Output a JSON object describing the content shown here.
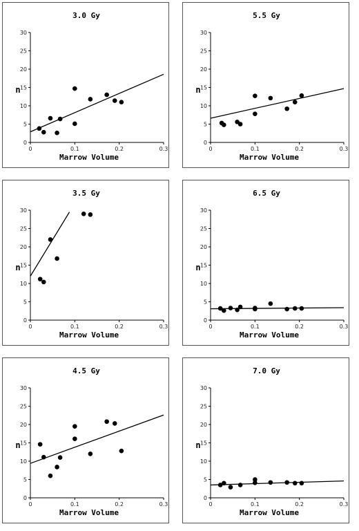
{
  "chart_data": [
    {
      "type": "scatter",
      "title": "3.0 Gy",
      "xlabel": "Marrow Volume",
      "ylabel": "n",
      "xlim": [
        0,
        0.3
      ],
      "ylim": [
        0,
        30
      ],
      "xticks": [
        "0",
        "0.1",
        "0.2",
        "0.3"
      ],
      "yticks": [
        "0",
        "5",
        "10",
        "15",
        "20",
        "25",
        "30"
      ],
      "points": [
        {
          "x": 0.02,
          "y": 3.8
        },
        {
          "x": 0.03,
          "y": 2.8
        },
        {
          "x": 0.045,
          "y": 6.6
        },
        {
          "x": 0.06,
          "y": 2.6
        },
        {
          "x": 0.067,
          "y": 6.4
        },
        {
          "x": 0.1,
          "y": 14.7
        },
        {
          "x": 0.1,
          "y": 5.1
        },
        {
          "x": 0.135,
          "y": 11.8
        },
        {
          "x": 0.172,
          "y": 13.0
        },
        {
          "x": 0.19,
          "y": 11.4
        },
        {
          "x": 0.205,
          "y": 11.0
        }
      ],
      "fit": [
        {
          "x": 0,
          "y": 2.9
        },
        {
          "x": 0.3,
          "y": 18.6
        }
      ]
    },
    {
      "type": "scatter",
      "title": "5.5 Gy",
      "xlabel": "Marrow Volume",
      "ylabel": "n",
      "xlim": [
        0,
        0.3
      ],
      "ylim": [
        0,
        30
      ],
      "xticks": [
        "0",
        "0.1",
        "0.2",
        "0.3"
      ],
      "yticks": [
        "0",
        "5",
        "10",
        "15",
        "20",
        "25",
        "30"
      ],
      "points": [
        {
          "x": 0.025,
          "y": 5.3
        },
        {
          "x": 0.03,
          "y": 4.8
        },
        {
          "x": 0.06,
          "y": 5.6
        },
        {
          "x": 0.067,
          "y": 5.0
        },
        {
          "x": 0.1,
          "y": 12.7
        },
        {
          "x": 0.1,
          "y": 7.8
        },
        {
          "x": 0.135,
          "y": 12.1
        },
        {
          "x": 0.172,
          "y": 9.2
        },
        {
          "x": 0.19,
          "y": 11.0
        },
        {
          "x": 0.205,
          "y": 12.8
        }
      ],
      "fit": [
        {
          "x": 0,
          "y": 6.6
        },
        {
          "x": 0.3,
          "y": 14.7
        }
      ]
    },
    {
      "type": "scatter",
      "title": "3.5 Gy",
      "xlabel": "Marrow Volume",
      "ylabel": "n",
      "xlim": [
        0,
        0.3
      ],
      "ylim": [
        0,
        30
      ],
      "xticks": [
        "0",
        "0.1",
        "0.2",
        "0.3"
      ],
      "yticks": [
        "0",
        "5",
        "10",
        "15",
        "20",
        "25",
        "30"
      ],
      "points": [
        {
          "x": 0.022,
          "y": 11.2
        },
        {
          "x": 0.03,
          "y": 10.4
        },
        {
          "x": 0.045,
          "y": 22.0
        },
        {
          "x": 0.06,
          "y": 16.8
        },
        {
          "x": 0.12,
          "y": 29.0
        },
        {
          "x": 0.135,
          "y": 28.8
        }
      ],
      "fit": [
        {
          "x": 0,
          "y": 12.0
        },
        {
          "x": 0.088,
          "y": 29.5
        }
      ]
    },
    {
      "type": "scatter",
      "title": "6.5 Gy",
      "xlabel": "Marrow Volume",
      "ylabel": "n",
      "xlim": [
        0,
        0.3
      ],
      "ylim": [
        0,
        30
      ],
      "xticks": [
        "0",
        "0.1",
        "0.2",
        "0.3"
      ],
      "yticks": [
        "0",
        "5",
        "10",
        "15",
        "20",
        "25",
        "30"
      ],
      "points": [
        {
          "x": 0.022,
          "y": 3.2
        },
        {
          "x": 0.03,
          "y": 2.6
        },
        {
          "x": 0.045,
          "y": 3.3
        },
        {
          "x": 0.06,
          "y": 2.8
        },
        {
          "x": 0.067,
          "y": 3.6
        },
        {
          "x": 0.1,
          "y": 3.3
        },
        {
          "x": 0.1,
          "y": 3.0
        },
        {
          "x": 0.135,
          "y": 4.5
        },
        {
          "x": 0.172,
          "y": 3.0
        },
        {
          "x": 0.19,
          "y": 3.2
        },
        {
          "x": 0.205,
          "y": 3.2
        }
      ],
      "fit": [
        {
          "x": 0,
          "y": 3.1
        },
        {
          "x": 0.3,
          "y": 3.4
        }
      ]
    },
    {
      "type": "scatter",
      "title": "4.5 Gy",
      "xlabel": "Marrow Volume",
      "ylabel": "n",
      "xlim": [
        0,
        0.3
      ],
      "ylim": [
        0,
        30
      ],
      "xticks": [
        "0",
        "0.1",
        "0.2",
        "0.3"
      ],
      "yticks": [
        "0",
        "5",
        "10",
        "15",
        "20",
        "25",
        "30"
      ],
      "points": [
        {
          "x": 0.022,
          "y": 14.6
        },
        {
          "x": 0.03,
          "y": 11.1
        },
        {
          "x": 0.045,
          "y": 6.0
        },
        {
          "x": 0.06,
          "y": 8.4
        },
        {
          "x": 0.067,
          "y": 11.0
        },
        {
          "x": 0.1,
          "y": 19.5
        },
        {
          "x": 0.1,
          "y": 16.1
        },
        {
          "x": 0.135,
          "y": 12.0
        },
        {
          "x": 0.172,
          "y": 20.8
        },
        {
          "x": 0.19,
          "y": 20.3
        },
        {
          "x": 0.205,
          "y": 12.8
        }
      ],
      "fit": [
        {
          "x": 0,
          "y": 9.4
        },
        {
          "x": 0.3,
          "y": 22.6
        }
      ]
    },
    {
      "type": "scatter",
      "title": "7.0 Gy",
      "xlabel": "Marrow Volume",
      "ylabel": "n",
      "xlim": [
        0,
        0.3
      ],
      "ylim": [
        0,
        30
      ],
      "xticks": [
        "0",
        "0.1",
        "0.2",
        "0.3"
      ],
      "yticks": [
        "0",
        "5",
        "10",
        "15",
        "20",
        "25",
        "30"
      ],
      "points": [
        {
          "x": 0.022,
          "y": 3.5
        },
        {
          "x": 0.03,
          "y": 4.0
        },
        {
          "x": 0.045,
          "y": 2.9
        },
        {
          "x": 0.067,
          "y": 3.5
        },
        {
          "x": 0.1,
          "y": 5.0
        },
        {
          "x": 0.1,
          "y": 4.1
        },
        {
          "x": 0.135,
          "y": 4.2
        },
        {
          "x": 0.172,
          "y": 4.2
        },
        {
          "x": 0.19,
          "y": 4.0
        },
        {
          "x": 0.205,
          "y": 4.0
        }
      ],
      "fit": [
        {
          "x": 0,
          "y": 3.5
        },
        {
          "x": 0.3,
          "y": 4.6
        }
      ]
    }
  ]
}
